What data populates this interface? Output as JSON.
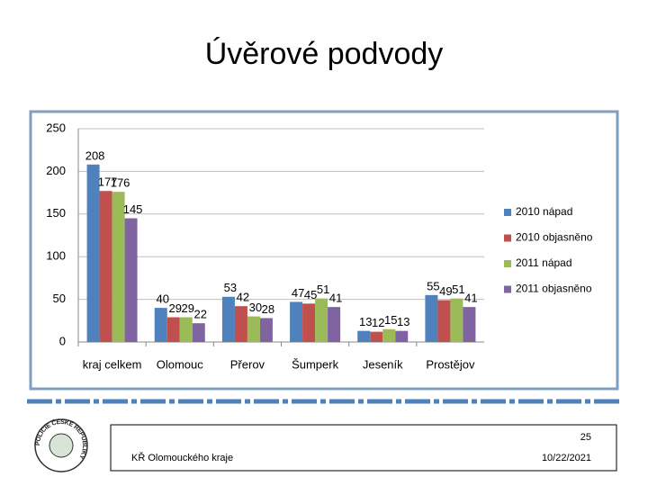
{
  "chart_data": {
    "type": "bar",
    "title": "Úvěrové podvody",
    "categories": [
      "kraj celkem",
      "Olomouc",
      "Přerov",
      "Šumperk",
      "Jeseník",
      "Prostějov"
    ],
    "series": [
      {
        "name": "2010 nápad",
        "color": "#4f81bd",
        "values": [
          208,
          40,
          53,
          47,
          13,
          55
        ]
      },
      {
        "name": "2010 objasněno",
        "color": "#c0504d",
        "values": [
          177,
          29,
          42,
          45,
          12,
          49
        ]
      },
      {
        "name": "2011 nápad",
        "color": "#9bbb59",
        "values": [
          176,
          29,
          30,
          51,
          15,
          51
        ]
      },
      {
        "name": "2011 objasněno",
        "color": "#8064a2",
        "values": [
          145,
          22,
          28,
          41,
          13,
          41
        ]
      }
    ],
    "ylim": [
      0,
      250
    ],
    "yticks": [
      0,
      50,
      100,
      150,
      200,
      250
    ],
    "grid": true,
    "legend": "right"
  },
  "footer": {
    "page": "25",
    "org": "KŘ Olomouckého kraje",
    "date": "10/22/2021"
  },
  "logo": {
    "text": "POLICIE ČESKÉ REPUBLIKY"
  }
}
